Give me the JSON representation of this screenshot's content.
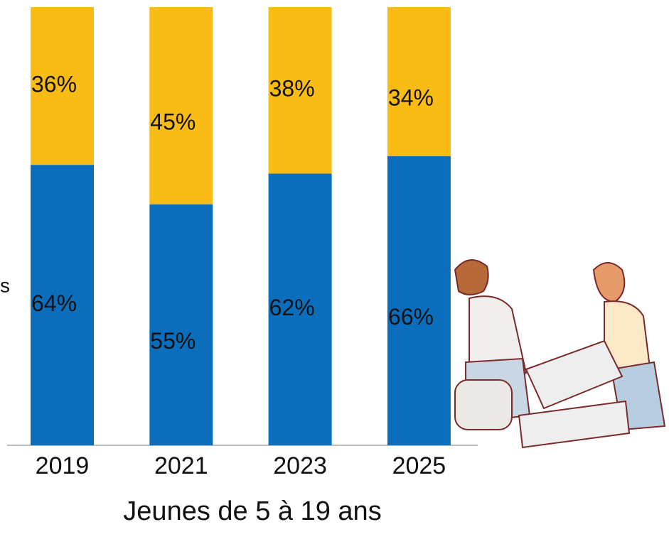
{
  "chart_data": {
    "type": "stacked_bar",
    "categories": [
      "2019",
      "2021",
      "2023",
      "2025"
    ],
    "series": [
      {
        "color": "#0a6ebd",
        "values": [
          64,
          55,
          62,
          66
        ],
        "value_labels": [
          "64%",
          "55%",
          "62%",
          "66%"
        ]
      },
      {
        "color": "#f9bc15",
        "values": [
          36,
          45,
          38,
          34
        ],
        "value_labels": [
          "36%",
          "45%",
          "38%",
          "34%"
        ]
      }
    ],
    "ylim": [
      0,
      100
    ],
    "xlabel": "Jeunes de 5 à 19 ans",
    "annotations": [
      "s"
    ]
  }
}
